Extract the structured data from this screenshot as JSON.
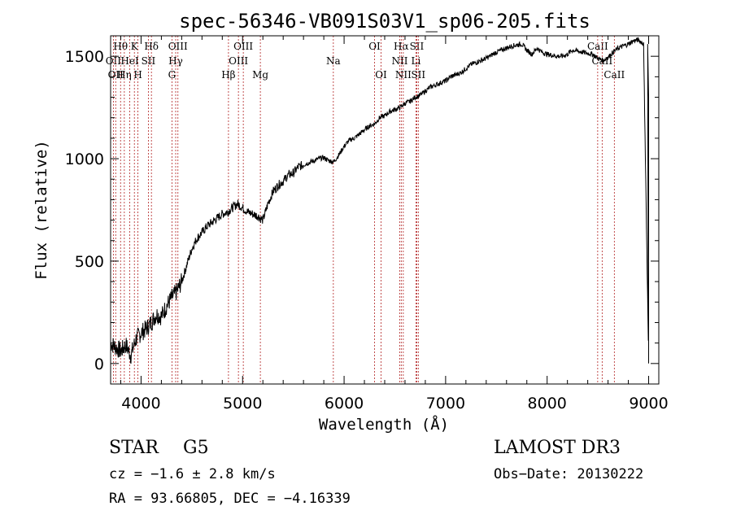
{
  "chart_data": {
    "type": "line",
    "title": "spec-56346-VB091S03V1_sp06-205.fits",
    "xlabel": "Wavelength (Å)",
    "ylabel": "Flux (relative)",
    "xlim": [
      3700,
      9100
    ],
    "ylim": [
      -100,
      1600
    ],
    "xticks": [
      4000,
      5000,
      6000,
      7000,
      8000,
      9000
    ],
    "yticks": [
      0,
      500,
      1000,
      1500
    ],
    "series": [
      {
        "name": "spectrum",
        "x": [
          3700,
          3750,
          3800,
          3850,
          3900,
          3950,
          4000,
          4050,
          4100,
          4150,
          4200,
          4250,
          4300,
          4350,
          4400,
          4450,
          4500,
          4550,
          4600,
          4650,
          4700,
          4750,
          4800,
          4850,
          4900,
          4950,
          5000,
          5050,
          5100,
          5150,
          5200,
          5250,
          5300,
          5350,
          5400,
          5450,
          5500,
          5550,
          5600,
          5650,
          5700,
          5750,
          5800,
          5850,
          5900,
          5950,
          6000,
          6050,
          6100,
          6150,
          6200,
          6250,
          6300,
          6350,
          6400,
          6450,
          6500,
          6550,
          6600,
          6650,
          6700,
          6750,
          6800,
          6850,
          6900,
          6950,
          7000,
          7050,
          7100,
          7150,
          7200,
          7250,
          7300,
          7350,
          7400,
          7450,
          7500,
          7550,
          7600,
          7650,
          7700,
          7750,
          7800,
          7850,
          7900,
          7950,
          8000,
          8050,
          8100,
          8150,
          8200,
          8250,
          8300,
          8350,
          8400,
          8450,
          8500,
          8550,
          8600,
          8650,
          8700,
          8750,
          8800,
          8850,
          8900,
          8950,
          9000
        ],
        "y": [
          100,
          80,
          60,
          90,
          40,
          120,
          150,
          170,
          200,
          240,
          230,
          280,
          320,
          350,
          400,
          480,
          560,
          610,
          640,
          670,
          690,
          710,
          730,
          740,
          760,
          780,
          760,
          740,
          730,
          720,
          700,
          780,
          840,
          870,
          890,
          920,
          930,
          960,
          970,
          980,
          990,
          1000,
          1005,
          990,
          985,
          1020,
          1060,
          1090,
          1100,
          1120,
          1140,
          1160,
          1170,
          1200,
          1210,
          1230,
          1240,
          1250,
          1270,
          1280,
          1300,
          1310,
          1330,
          1350,
          1360,
          1370,
          1380,
          1400,
          1410,
          1420,
          1440,
          1460,
          1470,
          1480,
          1490,
          1505,
          1520,
          1530,
          1540,
          1550,
          1555,
          1560,
          1530,
          1510,
          1540,
          1520,
          1510,
          1505,
          1500,
          1500,
          1510,
          1530,
          1525,
          1520,
          1515,
          1510,
          1490,
          1480,
          1495,
          1520,
          1540,
          1550,
          1560,
          1575,
          1580,
          1560,
          0
        ]
      }
    ],
    "lines": [
      {
        "wl": 3727,
        "label": "OII",
        "row": 1
      },
      {
        "wl": 3750,
        "label": "OII",
        "row": 2
      },
      {
        "wl": 3798,
        "label": "Hθ",
        "row": 0
      },
      {
        "wl": 3835,
        "label": "Hη",
        "row": 2
      },
      {
        "wl": 3889,
        "label": "HeI",
        "row": 1
      },
      {
        "wl": 3934,
        "label": "K",
        "row": 0
      },
      {
        "wl": 3969,
        "label": "H",
        "row": 2
      },
      {
        "wl": 4072,
        "label": "SII",
        "row": 1
      },
      {
        "wl": 4102,
        "label": "Hδ",
        "row": 0
      },
      {
        "wl": 4304,
        "label": "G",
        "row": 2
      },
      {
        "wl": 4341,
        "label": "Hγ",
        "row": 1
      },
      {
        "wl": 4363,
        "label": "OIII",
        "row": 0
      },
      {
        "wl": 4861,
        "label": "Hβ",
        "row": 2
      },
      {
        "wl": 4959,
        "label": "OIII",
        "row": 1
      },
      {
        "wl": 5007,
        "label": "OIII",
        "row": 0
      },
      {
        "wl": 5175,
        "label": "Mg",
        "row": 2
      },
      {
        "wl": 5894,
        "label": "Na",
        "row": 1
      },
      {
        "wl": 6300,
        "label": "OI",
        "row": 0
      },
      {
        "wl": 6364,
        "label": "OI",
        "row": 2
      },
      {
        "wl": 6548,
        "label": "NII",
        "row": 1
      },
      {
        "wl": 6563,
        "label": "Hα",
        "row": 0
      },
      {
        "wl": 6583,
        "label": "NII",
        "row": 2
      },
      {
        "wl": 6708,
        "label": "Li",
        "row": 1
      },
      {
        "wl": 6716,
        "label": "SII",
        "row": 0
      },
      {
        "wl": 6731,
        "label": "SII",
        "row": 2
      },
      {
        "wl": 8498,
        "label": "CaII",
        "row": 0
      },
      {
        "wl": 8542,
        "label": "CaII",
        "row": 1
      },
      {
        "wl": 8662,
        "label": "CaII",
        "row": 2
      }
    ]
  },
  "info": {
    "class_label": "STAR",
    "subclass_label": "G5",
    "survey": "LAMOST DR3",
    "cz": "cz = −1.6 ± 2.8 km/s",
    "obs_date": "Obs−Date: 20130222",
    "coords": "RA =  93.66805, DEC =  −4.16339"
  },
  "colors": {
    "axis": "#000000",
    "line_marker": "#b22222",
    "spectrum": "#000000"
  }
}
